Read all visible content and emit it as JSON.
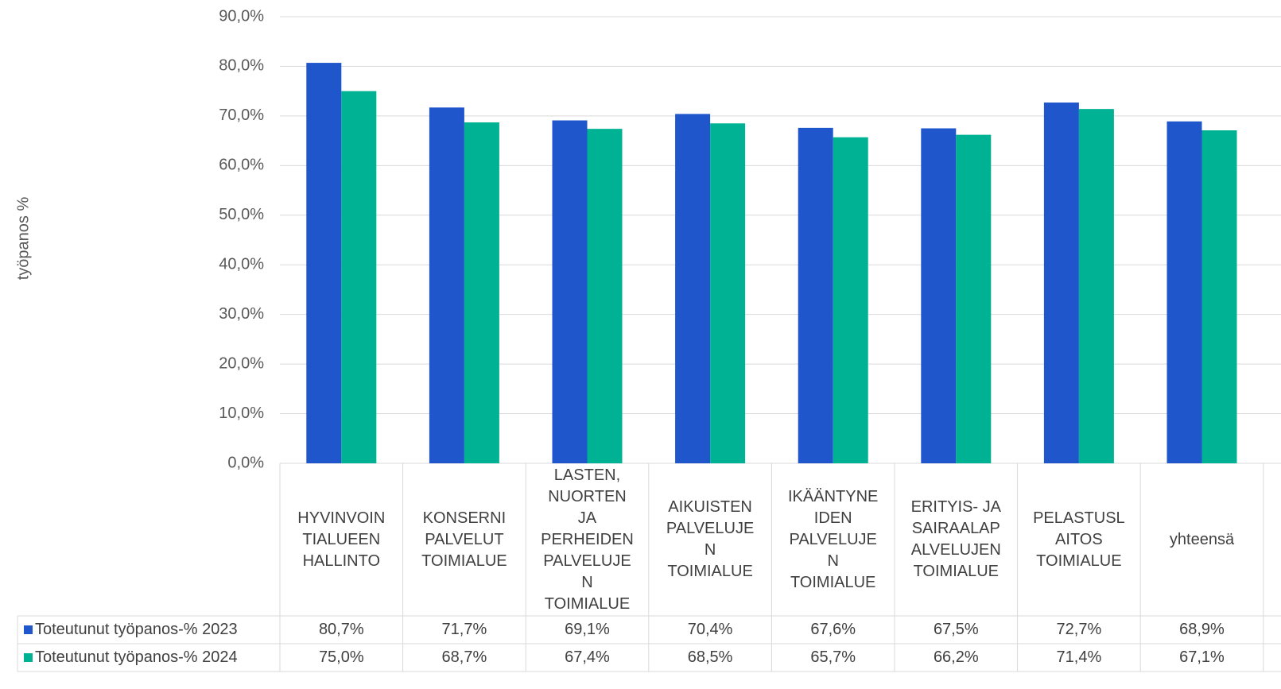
{
  "chart_data": {
    "type": "bar",
    "y_label": "työpanos %",
    "categories": [
      "HYVINVOIN\nTIALUEEN\nHALLINTO",
      "KONSERNI\nPALVELUT\nTOIMIALUE",
      "LASTEN,\nNUORTEN\nJA\nPERHEIDEN\nPALVELUJE\nN\nTOIMIALUE",
      "AIKUISTEN\nPALVELUJE\nN\nTOIMIALUE",
      "IKÄÄNTYNE\nIDEN\nPALVELUJE\nN\nTOIMIALUE",
      "ERITYIS- JA\nSAIRAALAP\nALVELUJEN\nTOIMIALUE",
      "PELASTUSL\nAITOS\nTOIMIALUE",
      "yhteensä"
    ],
    "series": [
      {
        "name": "Toteutunut työpanos-% 2023",
        "color": "#1f56cc",
        "values": [
          80.7,
          71.7,
          69.1,
          70.4,
          67.6,
          67.5,
          72.7,
          68.9
        ],
        "value_labels": [
          "80,7%",
          "71,7%",
          "69,1%",
          "70,4%",
          "67,6%",
          "67,5%",
          "72,7%",
          "68,9%"
        ]
      },
      {
        "name": "Toteutunut työpanos-% 2024",
        "color": "#00b294",
        "values": [
          75.0,
          68.7,
          67.4,
          68.5,
          65.7,
          66.2,
          71.4,
          67.1
        ],
        "value_labels": [
          "75,0%",
          "68,7%",
          "67,4%",
          "68,5%",
          "65,7%",
          "66,2%",
          "71,4%",
          "67,1%"
        ]
      }
    ],
    "ylim": [
      0,
      90
    ],
    "yticks": [
      {
        "value": 0,
        "label": "0,0%"
      },
      {
        "value": 10,
        "label": "10,0%"
      },
      {
        "value": 20,
        "label": "20,0%"
      },
      {
        "value": 30,
        "label": "30,0%"
      },
      {
        "value": 40,
        "label": "40,0%"
      },
      {
        "value": 50,
        "label": "50,0%"
      },
      {
        "value": 60,
        "label": "60,0%"
      },
      {
        "value": 70,
        "label": "70,0%"
      },
      {
        "value": 80,
        "label": "80,0%"
      },
      {
        "value": 90,
        "label": "90,0%"
      }
    ],
    "grid": true
  }
}
